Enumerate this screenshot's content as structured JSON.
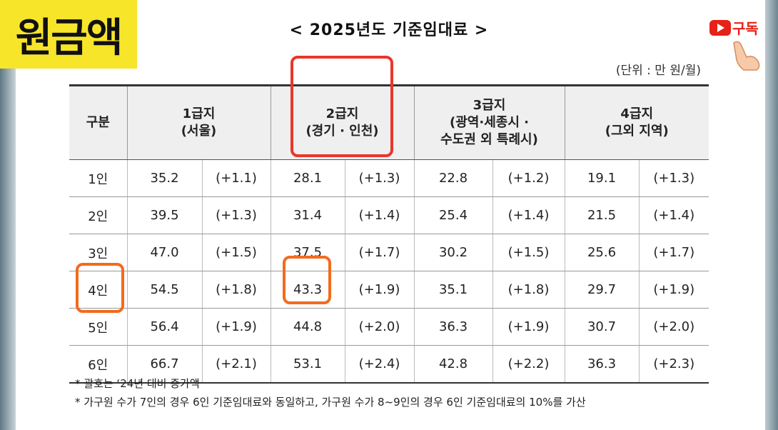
{
  "badge": "원금액",
  "subscribe": "구독",
  "title": "< 2025년도 기준임대료 >",
  "unit": "(단위 : 만 원/월)",
  "table": {
    "headers": [
      [
        "구분"
      ],
      [
        "1급지",
        "(서울)"
      ],
      [
        "2급지",
        "(경기 · 인천)"
      ],
      [
        "3급지",
        "(광역·세종시 ·",
        "수도권 외 특례시)"
      ],
      [
        "4급지",
        "(그외 지역)"
      ]
    ],
    "rows": [
      [
        "1인",
        "35.2",
        "(+1.1)",
        "28.1",
        "(+1.3)",
        "22.8",
        "(+1.2)",
        "19.1",
        "(+1.3)"
      ],
      [
        "2인",
        "39.5",
        "(+1.3)",
        "31.4",
        "(+1.4)",
        "25.4",
        "(+1.4)",
        "21.5",
        "(+1.4)"
      ],
      [
        "3인",
        "47.0",
        "(+1.5)",
        "37.5",
        "(+1.7)",
        "30.2",
        "(+1.5)",
        "25.6",
        "(+1.7)"
      ],
      [
        "4인",
        "54.5",
        "(+1.8)",
        "43.3",
        "(+1.9)",
        "35.1",
        "(+1.8)",
        "29.7",
        "(+1.9)"
      ],
      [
        "5인",
        "56.4",
        "(+1.9)",
        "44.8",
        "(+2.0)",
        "36.3",
        "(+1.9)",
        "30.7",
        "(+2.0)"
      ],
      [
        "6인",
        "66.7",
        "(+2.1)",
        "53.1",
        "(+2.4)",
        "42.8",
        "(+2.2)",
        "36.3",
        "(+2.3)"
      ]
    ]
  },
  "notes": [
    "* 괄호는 ‘24년 대비 증가액",
    "* 가구원 수가 7인의 경우 6인 기준임대료와 동일하고, 가구원 수가 8~9인의 경우 6인 기준임대료의 10%를 가산"
  ]
}
